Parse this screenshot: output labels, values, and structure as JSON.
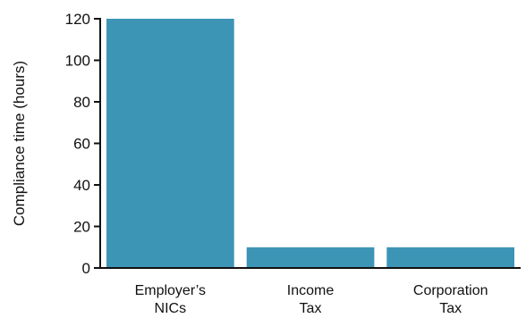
{
  "chart_data": {
    "type": "bar",
    "categories": [
      [
        "Employer’s",
        "NICs"
      ],
      [
        "Income",
        "Tax"
      ],
      [
        "Corporation",
        "Tax"
      ]
    ],
    "values": [
      120,
      10,
      10
    ],
    "title": "",
    "xlabel": "",
    "ylabel": "Compliance time (hours)",
    "ylim": [
      0,
      120
    ],
    "yticks": [
      0,
      20,
      40,
      60,
      80,
      100,
      120
    ],
    "grid": false,
    "legend": "none",
    "bar_color": "#3d95b6",
    "axis_color": "#111111"
  }
}
